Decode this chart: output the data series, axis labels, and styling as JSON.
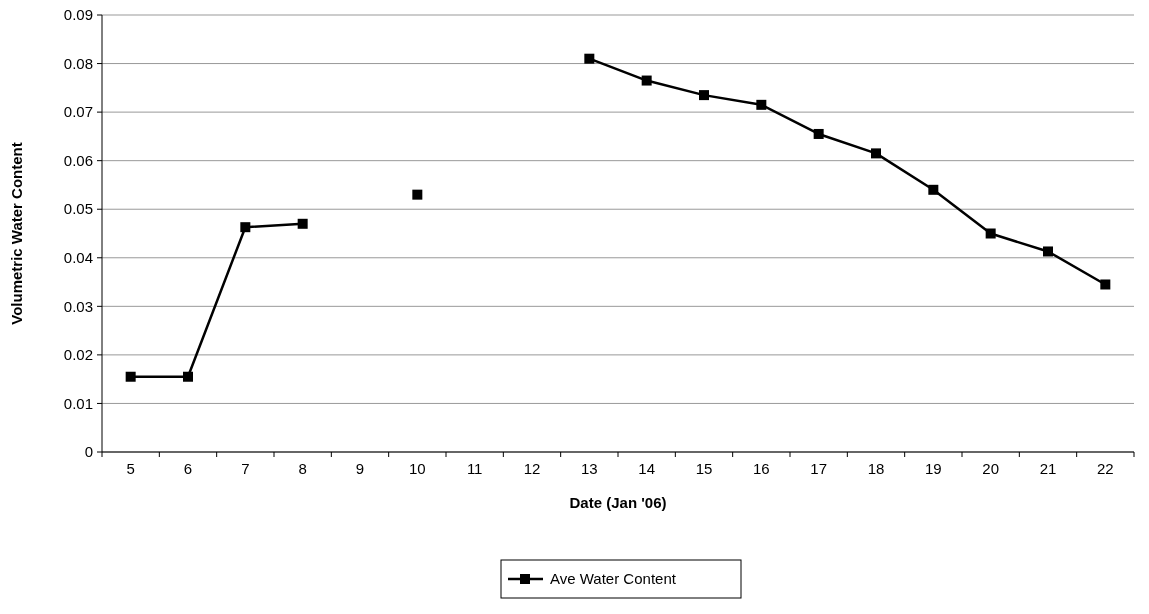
{
  "chart_data": {
    "type": "line",
    "xlabel": "Date (Jan '06)",
    "ylabel": "Volumetric Water Content",
    "categories": [
      "5",
      "6",
      "7",
      "8",
      "9",
      "10",
      "11",
      "12",
      "13",
      "14",
      "15",
      "16",
      "17",
      "18",
      "19",
      "20",
      "21",
      "22"
    ],
    "series": [
      {
        "name": "Ave Water Content",
        "color": "#000000",
        "values": [
          0.0155,
          0.0155,
          0.0463,
          0.047,
          null,
          0.053,
          null,
          null,
          0.081,
          0.0765,
          0.0735,
          0.0715,
          0.0655,
          0.0615,
          0.054,
          0.045,
          0.0413,
          0.0345
        ]
      }
    ],
    "ylim": [
      0,
      0.09
    ],
    "yticks": [
      0,
      0.01,
      0.02,
      0.03,
      0.04,
      0.05,
      0.06,
      0.07,
      0.08,
      0.09
    ],
    "grid": "y",
    "legend": "bottom",
    "marker": "square",
    "line_style": "solid"
  }
}
